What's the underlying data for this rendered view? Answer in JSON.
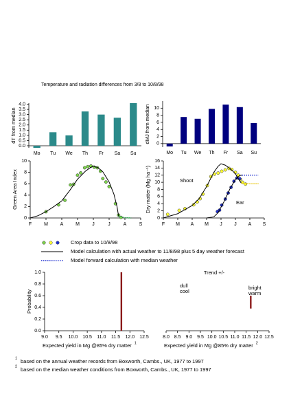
{
  "header": {
    "title": "Temperature and radiation differences from 3/8 to 10/8/98"
  },
  "chart_data": [
    {
      "type": "bar",
      "ylabel": "dT from median",
      "categories": [
        "Mo",
        "Tu",
        "We",
        "Th",
        "Fr",
        "Sa",
        "Su"
      ],
      "values": [
        -0.2,
        1.3,
        1.0,
        3.3,
        3.0,
        2.7,
        4.1
      ],
      "color": "#2b8a8a",
      "ylim": [
        -0.2,
        4.1
      ],
      "yticks": [
        {
          "value": 0,
          "label": "0.0"
        },
        0.5,
        {
          "value": 1,
          "label": "1.0"
        },
        1.5,
        {
          "value": 2,
          "label": "2.0"
        },
        2.5,
        {
          "value": 3,
          "label": "3.0"
        },
        3.5,
        {
          "value": 4,
          "label": "4.0"
        }
      ]
    },
    {
      "type": "bar",
      "ylabel": "dMJ from median",
      "categories": [
        "Mo",
        "Tu",
        "We",
        "Th",
        "Fr",
        "Sa",
        "Su"
      ],
      "values": [
        -0.8,
        7.5,
        7.0,
        9.8,
        11.0,
        10.3,
        5.8
      ],
      "color": "#00007f",
      "ylim": [
        -1,
        12
      ],
      "yticks": [
        0,
        2,
        4,
        6,
        8,
        10
      ]
    },
    {
      "type": "line",
      "ylabel": "Green Area Index",
      "xlim": [
        0,
        7
      ],
      "ylim": [
        0,
        10
      ],
      "yticks": [
        0,
        2,
        4,
        6,
        8,
        10
      ],
      "xticks": [
        {
          "value": 0,
          "label": "F"
        },
        {
          "value": 1,
          "label": "M"
        },
        {
          "value": 2,
          "label": "A"
        },
        {
          "value": 3,
          "label": "M"
        },
        {
          "value": 4,
          "label": "J"
        },
        {
          "value": 5,
          "label": "J"
        },
        {
          "value": 6,
          "label": "A"
        },
        {
          "value": 7,
          "label": "S"
        }
      ],
      "series": [
        {
          "style": "points",
          "color": "#7cd34a",
          "x": [
            1.0,
            1.8,
            2.2,
            2.55,
            2.75,
            3.0,
            3.2,
            3.45,
            3.65,
            3.85,
            4.05,
            4.25,
            4.45,
            4.6,
            4.8,
            5.0,
            5.4,
            5.6,
            5.75
          ],
          "values": [
            1.1,
            2.3,
            3.1,
            5.8,
            5.9,
            7.5,
            7.9,
            8.8,
            9.0,
            9.1,
            8.9,
            8.8,
            8.2,
            6.9,
            6.3,
            5.5,
            2.5,
            0.5,
            0.1
          ]
        },
        {
          "style": "line",
          "color": "#000000",
          "x": [
            0,
            0.5,
            1,
            1.5,
            2,
            2.5,
            3,
            3.5,
            3.8,
            4.0,
            4.3,
            4.6,
            5.0,
            5.3,
            5.5,
            5.6
          ],
          "values": [
            0,
            0.4,
            1.1,
            2.0,
            3.0,
            4.8,
            6.8,
            8.2,
            8.8,
            9.1,
            8.8,
            8.1,
            6.3,
            4.2,
            2.0,
            0.3
          ]
        },
        {
          "style": "dotted",
          "color": "#22b14c",
          "x": [
            5.6,
            6.0,
            6.4
          ],
          "values": [
            0.3,
            0.05,
            0
          ]
        }
      ]
    },
    {
      "type": "line",
      "ylabel": "Dry matter (Mg ha⁻¹)",
      "xlim": [
        0,
        7
      ],
      "ylim": [
        0,
        16
      ],
      "yticks": [
        0,
        2,
        4,
        6,
        8,
        10,
        12,
        14,
        16
      ],
      "xticks": [
        {
          "value": 0,
          "label": "F"
        },
        {
          "value": 1,
          "label": "M"
        },
        {
          "value": 2,
          "label": "A"
        },
        {
          "value": 3,
          "label": "M"
        },
        {
          "value": 4,
          "label": "J"
        },
        {
          "value": 5,
          "label": "J"
        },
        {
          "value": 6,
          "label": "A"
        },
        {
          "value": 7,
          "label": "S"
        }
      ],
      "annotations": [
        "Shoot",
        "Ear"
      ],
      "series": [
        {
          "style": "points",
          "color": "#ffff33",
          "x": [
            0.3,
            1.1,
            1.5,
            2.1,
            2.35,
            2.55,
            2.75,
            3.05,
            3.3,
            3.55,
            3.8,
            4.05,
            4.3,
            4.55,
            4.75,
            5.0,
            5.2,
            5.35,
            5.5,
            5.7
          ],
          "values": [
            1.0,
            2.1,
            2.6,
            3.7,
            4.5,
            5.4,
            6.7,
            9.1,
            11.6,
            12.3,
            12.6,
            13.1,
            13.5,
            13.9,
            13.6,
            12.8,
            12.0,
            10.8,
            10.0,
            9.5
          ]
        },
        {
          "style": "points",
          "color": "#1f2fd0",
          "x": [
            3.75,
            3.9,
            4.05,
            4.3,
            4.5,
            4.7,
            4.9,
            5.1,
            5.3
          ],
          "values": [
            1.8,
            2.2,
            3.6,
            5.3,
            7.0,
            8.6,
            10.3,
            11.2,
            11.0
          ]
        },
        {
          "style": "line",
          "color": "#000000",
          "x": [
            0,
            1,
            2,
            2.5,
            3,
            3.5,
            3.8,
            4.0,
            4.3,
            4.7,
            5.0,
            5.2,
            5.4
          ],
          "values": [
            0,
            1.2,
            3.5,
            5.5,
            8.8,
            12.8,
            14.5,
            15.2,
            14.8,
            13.6,
            12.4,
            11.0,
            9.8
          ]
        },
        {
          "style": "line",
          "color": "#000000",
          "x": [
            3.0,
            3.5,
            3.8,
            4.2,
            4.6,
            5.0,
            5.3,
            5.45
          ],
          "values": [
            0,
            0.3,
            1.5,
            4.5,
            8.0,
            10.8,
            11.9,
            12.0
          ]
        },
        {
          "style": "dotted",
          "color": "#e6c200",
          "x": [
            5.4,
            6.0,
            6.6
          ],
          "values": [
            9.8,
            9.6,
            9.6
          ]
        },
        {
          "style": "dotted",
          "color": "#1f2fd0",
          "x": [
            5.45,
            6.0,
            6.6
          ],
          "values": [
            12,
            12,
            12
          ]
        }
      ]
    },
    {
      "type": "bar",
      "ylabel": "Probability",
      "xlabel": "Expected yield in Mg @85% dry matter",
      "xlabel_note": "1",
      "x": [
        11.7
      ],
      "values": [
        1.0
      ],
      "color": "#8b1a1a",
      "xlim": [
        9.0,
        12.5
      ],
      "ylim": [
        0,
        1
      ],
      "xticks": [
        {
          "value": 9,
          "label": "9.0"
        },
        9.5,
        {
          "value": 10,
          "label": "10.0"
        },
        10.5,
        {
          "value": 11,
          "label": "11.0"
        },
        11.5,
        {
          "value": 12,
          "label": "12.0"
        },
        12.5
      ],
      "yticks": [
        {
          "value": 0,
          "label": "0.0"
        },
        0.2,
        0.4,
        0.6,
        0.8,
        {
          "value": 1,
          "label": "1.0"
        }
      ]
    },
    {
      "type": "range",
      "title": "Trend +/-",
      "xlabel": "Expected yield in Mg @85% dry matter",
      "xlabel_note": "2",
      "x": [
        11.7
      ],
      "low": [
        0.38
      ],
      "high": [
        0.6
      ],
      "color": "#8b1a1a",
      "xlim": [
        8.0,
        12.5
      ],
      "ylim": [
        0,
        1
      ],
      "annotations": [
        "dull",
        "cool",
        "bright",
        "warm"
      ],
      "xticks": [
        {
          "value": 8,
          "label": "8.0"
        },
        8.5,
        {
          "value": 9,
          "label": "9.0"
        },
        9.5,
        {
          "value": 10,
          "label": "10.0"
        },
        10.5,
        {
          "value": 11,
          "label": "11.0"
        },
        11.5,
        {
          "value": 12,
          "label": "12.0"
        },
        12.5
      ]
    }
  ],
  "legend": [
    "Crop data to 10/8/98",
    "Model calculation with actual weather to 11/8/98 plus 5 day weather forecast",
    "Model forward calculation with median weather"
  ],
  "footnotes": [
    {
      "mark": "1",
      "text": "based on the annual weather records from Boxworth, Cambs., UK,  1977 to 1997"
    },
    {
      "mark": "2",
      "text": "based on the median weather conditions from Boxworth, Cambs., UK, 1977 to 1997"
    }
  ]
}
